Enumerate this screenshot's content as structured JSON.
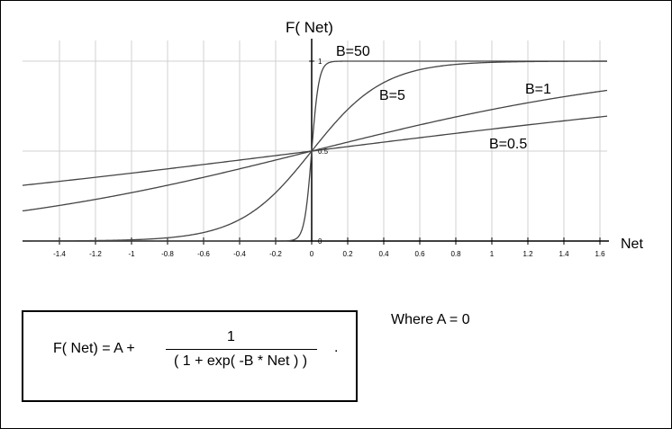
{
  "chart_data": {
    "type": "line",
    "ylabel": "F( Net)",
    "xlabel": "Net",
    "x_ticks": [
      "-1.4",
      "-1.2",
      "-1",
      "-0.8",
      "-0.6",
      "-0.4",
      "-0.2",
      "0",
      "0.2",
      "0.4",
      "0.6",
      "0.8",
      "1",
      "1.2",
      "1.4",
      "1.6"
    ],
    "x_tick_values": [
      -1.4,
      -1.2,
      -1,
      -0.8,
      -0.6,
      -0.4,
      -0.2,
      0,
      0.2,
      0.4,
      0.6,
      0.8,
      1,
      1.2,
      1.4,
      1.6
    ],
    "y_ticks": [
      "0",
      "0.5",
      "1"
    ],
    "y_tick_values": [
      0,
      0.5,
      1
    ],
    "xlim": [
      -1.6,
      1.64
    ],
    "ylim": [
      0,
      1
    ],
    "grid": true,
    "series": [
      {
        "name": "B=50",
        "B": 50
      },
      {
        "name": "B=5",
        "B": 5
      },
      {
        "name": "B=1",
        "B": 1
      },
      {
        "name": "B=0.5",
        "B": 0.5
      }
    ]
  },
  "formula": {
    "lhs": "F( Net) = A +",
    "numerator": "1",
    "denominator": "( 1 + exp( -B * Net ) )",
    "trailing": "."
  },
  "note": "Where A = 0"
}
